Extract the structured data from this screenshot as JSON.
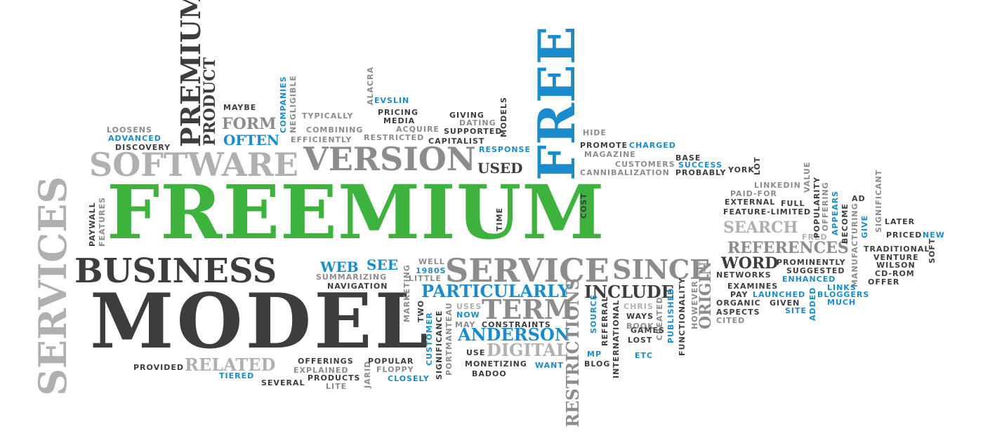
{
  "colors": {
    "dark": "#3d3d3d",
    "gray": "#8c8c8c",
    "light": "#b0b0b0",
    "blue": "#1a8ccc",
    "green": "#3db33d"
  },
  "words": {
    "freemium": "FREEMIUM",
    "model": "MODEL",
    "business": "BUSINESS",
    "services": "SERVICES",
    "free": "FREE",
    "software": "SOFTWARE",
    "version": "VERSION",
    "service": "SERVICE",
    "since": "SINCE",
    "premium": "PREMIUM",
    "product": "PRODUCT",
    "term": "TERM",
    "digital": "DIGITAL",
    "anderson": "ANDERSON",
    "particularly": "PARTICULARLY",
    "include": "INCLUDE",
    "related": "RELATED",
    "word": "WORD",
    "references": "REFERENCES",
    "search": "SEARCH",
    "restrictions": "RESTRICTIONS",
    "origin": "ORIGIN",
    "form": "FORM",
    "often": "OFTEN",
    "used": "USED",
    "web": "WEB",
    "see": "SEE",
    "maybe": "MAYBE",
    "typically": "TYPICALLY",
    "combining": "COMBINING",
    "efficiently": "EFFICIENTLY",
    "pricing": "PRICING",
    "media": "MEDIA",
    "acquire": "ACQUIRE",
    "restricted": "RESTRICTED",
    "capitalist": "CAPITALIST",
    "giving": "GIVING",
    "dating": "DATING",
    "supported": "SUPPORTED",
    "response": "RESPONSE",
    "evslin": "EVSLIN",
    "alacra": "ALACRA",
    "models": "MODELS",
    "companies": "COMPANIES",
    "negligible": "NEGLIGIBLE",
    "loosens": "LOOSENS",
    "advanced": "ADVANCED",
    "discovery": "DISCOVERY",
    "hide": "HIDE",
    "promote": "PROMOTE",
    "charged": "CHARGED",
    "magazine": "MAGAZINE",
    "customers": "CUSTOMERS",
    "cannibalization": "CANNIBALIZATION",
    "base": "BASE",
    "success": "SUCCESS",
    "probably": "PROBABLY",
    "york": "YORK",
    "lot": "LOT",
    "linkedin": "LINKEDIN",
    "paid_for": "PAID-FOR",
    "external": "EXTERNAL",
    "feature_limited": "FEATURE-LIMITED",
    "full": "FULL",
    "fred": "FRED",
    "value": "VALUE",
    "popularity": "POPULARITY",
    "offering": "OFFERING",
    "appears": "APPEARS",
    "become": "BECOME",
    "ad": "AD",
    "significant": "SIGNIFICANT",
    "later": "LATER",
    "priced": "PRICED",
    "new": "NEW",
    "soft": "SOFT",
    "traditional": "TRADITIONAL",
    "venture": "VENTURE",
    "wilson": "WILSON",
    "cd_rom": "CD-ROM",
    "offer": "OFFER",
    "manufacturing": "MANUFACTURING",
    "give": "GIVE",
    "prominently": "PROMINENTLY",
    "suggested": "SUGGESTED",
    "enhanced": "ENHANCED",
    "links": "LINKS",
    "bloggers": "BLOGGERS",
    "much": "MUCH",
    "networks": "NETWORKS",
    "examines": "EXAMINES",
    "pay": "PAY",
    "launched": "LAUNCHED",
    "organic": "ORGANIC",
    "given": "GIVEN",
    "site": "SITE",
    "added": "ADDED",
    "aspects": "ASPECTS",
    "cited": "CITED",
    "however": "HOWEVER",
    "functionality": "FUNCTIONALITY",
    "published": "PUBLISHED",
    "created": "CREATED",
    "chris": "CHRIS",
    "ways": "WAYS",
    "book": "BOOK",
    "games": "GAMES",
    "lost": "LOST",
    "etc": "ETC",
    "international": "INTERNATIONAL",
    "referral": "REFERRAL",
    "source": "SOURCE",
    "mp": "MP",
    "blog": "BLOG",
    "want": "WANT",
    "cost": "COST",
    "time": "TIME",
    "uses": "USES",
    "now": "NOW",
    "may": "MAY",
    "constraints": "CONSTRAINTS",
    "use": "USE",
    "monetizing": "MONETIZING",
    "badoo": "BADOO",
    "portmanteau": "PORTMANTEAU",
    "significance": "SIGNIFICANCE",
    "customer": "CUSTOMER",
    "two": "TWO",
    "marketing": "MARKETING",
    "well": "WELL",
    "little": "LITTLE",
    "y1980s": "1980S",
    "summarizing": "SUMMARIZING",
    "navigation": "NAVIGATION",
    "offerings": "OFFERINGS",
    "explained": "EXPLAINED",
    "products": "PRODUCTS",
    "lite": "LITE",
    "popular": "POPULAR",
    "floppy": "FLOPPY",
    "closely": "CLOSELY",
    "jarid": "JARID",
    "several": "SEVERAL",
    "tiered": "TIERED",
    "provided": "PROVIDED",
    "paywall": "PAYWALL",
    "features": "FEATURES"
  }
}
